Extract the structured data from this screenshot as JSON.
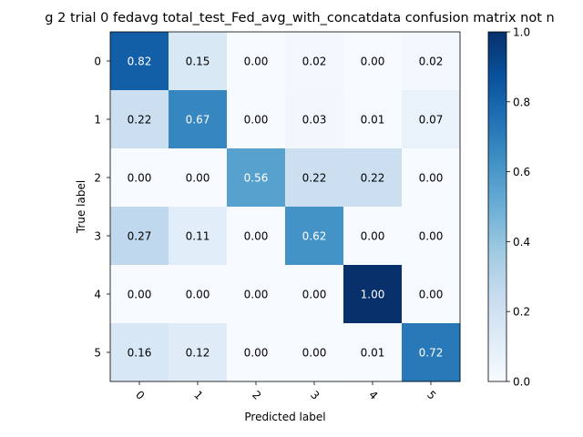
{
  "chart_data": {
    "type": "heatmap",
    "title": "g 2 trial 0 fedavg total_test_Fed_avg_with_concatdata confusion matrix not n",
    "xlabel": "Predicted label",
    "ylabel": "True label",
    "x_categories": [
      "0",
      "1",
      "2",
      "3",
      "4",
      "5"
    ],
    "y_categories": [
      "0",
      "1",
      "2",
      "3",
      "4",
      "5"
    ],
    "values": [
      [
        0.82,
        0.15,
        0.0,
        0.02,
        0.0,
        0.02
      ],
      [
        0.22,
        0.67,
        0.0,
        0.03,
        0.01,
        0.07
      ],
      [
        0.0,
        0.0,
        0.56,
        0.22,
        0.22,
        0.0
      ],
      [
        0.27,
        0.11,
        0.0,
        0.62,
        0.0,
        0.0
      ],
      [
        0.0,
        0.0,
        0.0,
        0.0,
        1.0,
        0.0
      ],
      [
        0.16,
        0.12,
        0.0,
        0.0,
        0.01,
        0.72
      ]
    ],
    "value_labels": [
      [
        "0.82",
        "0.15",
        "0.00",
        "0.02",
        "0.00",
        "0.02"
      ],
      [
        "0.22",
        "0.67",
        "0.00",
        "0.03",
        "0.01",
        "0.07"
      ],
      [
        "0.00",
        "0.00",
        "0.56",
        "0.22",
        "0.22",
        "0.00"
      ],
      [
        "0.27",
        "0.11",
        "0.00",
        "0.62",
        "0.00",
        "0.00"
      ],
      [
        "0.00",
        "0.00",
        "0.00",
        "0.00",
        "1.00",
        "0.00"
      ],
      [
        "0.16",
        "0.12",
        "0.00",
        "0.00",
        "0.01",
        "0.72"
      ]
    ],
    "colormap": "Blues",
    "colorbar": {
      "range": [
        0.0,
        1.0
      ],
      "ticks": [
        0.0,
        0.2,
        0.4,
        0.6,
        0.8,
        1.0
      ],
      "tick_labels": [
        "0.0",
        "0.2",
        "0.4",
        "0.6",
        "0.8",
        "1.0"
      ]
    },
    "x_tick_rotation_deg": 45,
    "grid": false,
    "legend": "none"
  }
}
